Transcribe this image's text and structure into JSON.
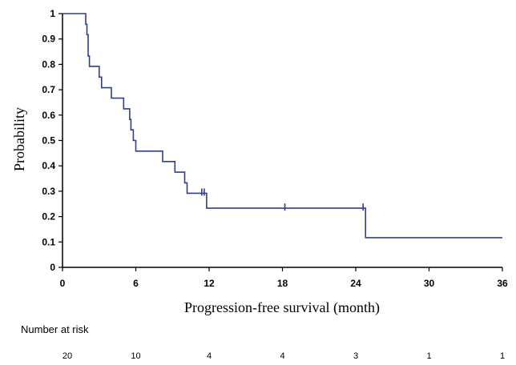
{
  "chart_data": {
    "type": "line",
    "subtype": "kaplan-meier",
    "title": "",
    "xlabel": "Progression-free survival (month)",
    "ylabel": "Probability",
    "xlim": [
      0,
      36
    ],
    "ylim": [
      0,
      1
    ],
    "x_ticks": [
      "0",
      "6",
      "12",
      "18",
      "24",
      "30",
      "36"
    ],
    "y_ticks": [
      "0",
      "0.1",
      "0.2",
      "0.3",
      "0.4",
      "0.5",
      "0.6",
      "0.7",
      "0.8",
      "0.9",
      "1"
    ],
    "grid": false,
    "line_color": "#2e3f8f",
    "series": [
      {
        "x": [
          0,
          1.9,
          1.9,
          2.0,
          2.0,
          2.1,
          2.1,
          2.2,
          2.2,
          3.0,
          3.0,
          3.2,
          3.2,
          4.0,
          4.0,
          5.0,
          5.0,
          5.5,
          5.5,
          5.6,
          5.6,
          5.8,
          5.8,
          6.0,
          6.0,
          8.2,
          8.2,
          9.2,
          9.2,
          10.0,
          10.0,
          10.2,
          10.2,
          11.8,
          11.8,
          24.8,
          24.8,
          36
        ],
        "y": [
          1,
          1,
          0.958,
          0.958,
          0.917,
          0.917,
          0.833,
          0.833,
          0.792,
          0.792,
          0.75,
          0.75,
          0.708,
          0.708,
          0.667,
          0.667,
          0.625,
          0.625,
          0.583,
          0.583,
          0.542,
          0.542,
          0.5,
          0.5,
          0.458,
          0.458,
          0.417,
          0.417,
          0.375,
          0.375,
          0.333,
          0.333,
          0.292,
          0.292,
          0.233,
          0.233,
          0.117,
          0.117
        ]
      }
    ],
    "censor_marks": [
      {
        "x": 11.4,
        "y": 0.292
      },
      {
        "x": 11.6,
        "y": 0.292
      },
      {
        "x": 18.2,
        "y": 0.233
      },
      {
        "x": 24.6,
        "y": 0.233
      }
    ],
    "risk_table": {
      "title": "Number at risk",
      "times": [
        0,
        6,
        12,
        18,
        24,
        30,
        36
      ],
      "counts": [
        "20",
        "10",
        "4",
        "4",
        "3",
        "1",
        "1"
      ]
    }
  }
}
